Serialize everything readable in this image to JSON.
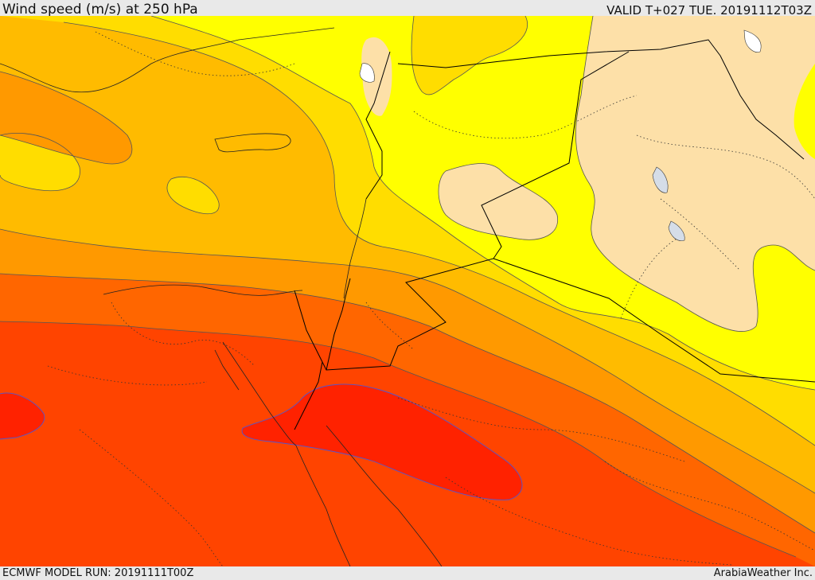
{
  "header": {
    "title": "Wind speed (m/s) at 250 hPa",
    "valid": "VALID T+027 TUE. 20191112T03Z"
  },
  "footer": {
    "run": "ECMWF MODEL RUN: 20191111T00Z",
    "credit": "ArabiaWeather Inc."
  },
  "palette": {
    "band_1": "#fde0a8",
    "band_2": "#ffff00",
    "band_3": "#ffdd00",
    "band_4": "#ffbb00",
    "band_5": "#ff9900",
    "band_6": "#ff6600",
    "band_7": "#ff4400",
    "band_8": "#ff2200",
    "contour": "#555555",
    "strong_contour": "#5555cc",
    "border": "#000000",
    "lake": "#d5dde8"
  }
}
